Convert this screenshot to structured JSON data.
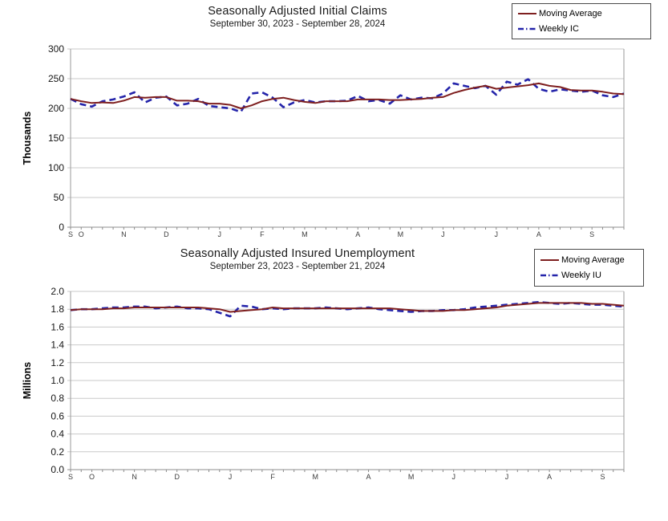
{
  "chart_data": [
    {
      "type": "line",
      "title": "Seasonally Adjusted Initial Claims",
      "subtitle": "September 30, 2023 - September 28, 2024",
      "ylabel": "Thousands",
      "ylim": [
        0,
        300
      ],
      "yticks": [
        "300",
        "250",
        "200",
        "150",
        "100",
        "50",
        "0"
      ],
      "grid": true,
      "legend_position": "top-right",
      "weeks": 53,
      "months": [
        {
          "label": "S",
          "week": 0
        },
        {
          "label": "O",
          "week": 1
        },
        {
          "label": "N",
          "week": 5
        },
        {
          "label": "D",
          "week": 9
        },
        {
          "label": "J",
          "week": 14
        },
        {
          "label": "F",
          "week": 18
        },
        {
          "label": "M",
          "week": 22
        },
        {
          "label": "A",
          "week": 27
        },
        {
          "label": "M",
          "week": 31
        },
        {
          "label": "J",
          "week": 35
        },
        {
          "label": "J",
          "week": 40
        },
        {
          "label": "A",
          "week": 44
        },
        {
          "label": "S",
          "week": 49
        }
      ],
      "series": [
        {
          "name": "Moving Average",
          "style": "solid",
          "color": "#7E1F1F",
          "values": [
            216,
            212,
            209,
            210,
            209,
            213,
            219,
            218,
            219,
            219,
            213,
            213,
            212,
            208,
            208,
            206,
            200,
            205,
            212,
            216,
            218,
            214,
            211,
            209,
            212,
            212,
            212,
            215,
            215,
            215,
            214,
            214,
            215,
            216,
            218,
            219,
            226,
            231,
            235,
            238,
            233,
            235,
            237,
            239,
            242,
            238,
            236,
            231,
            230,
            230,
            228,
            225,
            224
          ]
        },
        {
          "name": "Weekly IC",
          "style": "dashed",
          "color": "#2424AA",
          "values": [
            216,
            207,
            203,
            212,
            215,
            220,
            227,
            210,
            218,
            220,
            205,
            208,
            216,
            204,
            202,
            200,
            194,
            225,
            227,
            218,
            202,
            210,
            214,
            210,
            212,
            212,
            213,
            221,
            212,
            214,
            208,
            222,
            215,
            218,
            217,
            225,
            242,
            238,
            234,
            238,
            223,
            245,
            240,
            249,
            233,
            228,
            232,
            230,
            228,
            230,
            222,
            219,
            225
          ]
        }
      ]
    },
    {
      "type": "line",
      "title": "Seasonally Adjusted Insured Unemployment",
      "subtitle": "September 23, 2023 - September 21, 2024",
      "ylabel": "Millions",
      "ylim": [
        0,
        2.0
      ],
      "yticks": [
        "2.0",
        "1.8",
        "1.6",
        "1.4",
        "1.2",
        "1.0",
        "0.8",
        "0.6",
        "0.4",
        "0.2",
        "0.0"
      ],
      "grid": true,
      "legend_position": "top-right",
      "weeks": 53,
      "months": [
        {
          "label": "S",
          "week": 0
        },
        {
          "label": "O",
          "week": 2
        },
        {
          "label": "N",
          "week": 6
        },
        {
          "label": "D",
          "week": 10
        },
        {
          "label": "J",
          "week": 15
        },
        {
          "label": "F",
          "week": 19
        },
        {
          "label": "M",
          "week": 23
        },
        {
          "label": "A",
          "week": 28
        },
        {
          "label": "M",
          "week": 32
        },
        {
          "label": "J",
          "week": 36
        },
        {
          "label": "J",
          "week": 41
        },
        {
          "label": "A",
          "week": 45
        },
        {
          "label": "S",
          "week": 50
        }
      ],
      "series": [
        {
          "name": "Moving Average",
          "style": "solid",
          "color": "#7E1F1F",
          "values": [
            1.79,
            1.8,
            1.8,
            1.8,
            1.81,
            1.81,
            1.82,
            1.82,
            1.82,
            1.82,
            1.82,
            1.82,
            1.82,
            1.81,
            1.8,
            1.77,
            1.78,
            1.79,
            1.8,
            1.82,
            1.81,
            1.81,
            1.81,
            1.81,
            1.81,
            1.81,
            1.81,
            1.81,
            1.81,
            1.81,
            1.81,
            1.8,
            1.79,
            1.78,
            1.78,
            1.78,
            1.79,
            1.79,
            1.8,
            1.81,
            1.82,
            1.84,
            1.85,
            1.86,
            1.87,
            1.87,
            1.87,
            1.87,
            1.87,
            1.86,
            1.86,
            1.85,
            1.84
          ]
        },
        {
          "name": "Weekly IU",
          "style": "dashed",
          "color": "#2424AA",
          "values": [
            1.79,
            1.8,
            1.8,
            1.81,
            1.82,
            1.82,
            1.83,
            1.83,
            1.81,
            1.82,
            1.83,
            1.81,
            1.81,
            1.8,
            1.76,
            1.72,
            1.84,
            1.83,
            1.8,
            1.81,
            1.8,
            1.81,
            1.81,
            1.81,
            1.82,
            1.81,
            1.8,
            1.81,
            1.82,
            1.8,
            1.79,
            1.78,
            1.77,
            1.78,
            1.78,
            1.79,
            1.79,
            1.8,
            1.82,
            1.83,
            1.84,
            1.85,
            1.86,
            1.87,
            1.88,
            1.87,
            1.86,
            1.87,
            1.86,
            1.85,
            1.85,
            1.84,
            1.83
          ]
        }
      ]
    }
  ]
}
